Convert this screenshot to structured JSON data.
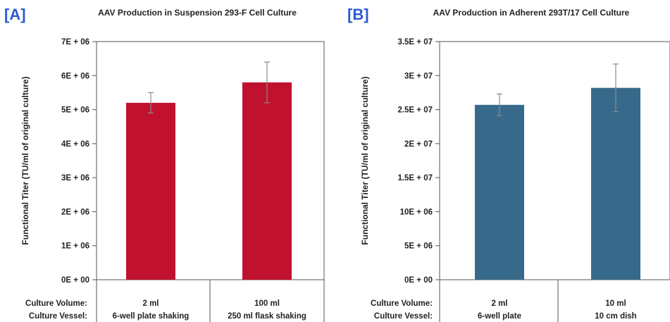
{
  "chart_data": [
    {
      "type": "bar",
      "panel_label": "[A]",
      "title": "AAV Production in Suspension 293-F Cell Culture",
      "ylabel": "Functional Titer (TU/ml of original culture)",
      "ylim": [
        0,
        7000000
      ],
      "yticks": [
        "0E + 00",
        "1E + 06",
        "2E + 06",
        "3E + 06",
        "4E + 06",
        "5E + 06",
        "6E + 06",
        "7E + 06"
      ],
      "row_labels": [
        "Culture Volume:",
        "Culture Vessel:"
      ],
      "categories": [
        {
          "volume": "2 ml",
          "vessel": "6-well plate shaking"
        },
        {
          "volume": "100 ml",
          "vessel": "250 ml flask shaking"
        }
      ],
      "values": [
        5200000,
        5800000
      ],
      "errors": [
        300000,
        600000
      ],
      "bar_color": "#c0122f",
      "grid": false
    },
    {
      "type": "bar",
      "panel_label": "[B]",
      "title": "AAV Production in Adherent 293T/17 Cell Culture",
      "ylabel": "Functional Titer (TU/ml of original culture)",
      "ylim": [
        0,
        35000000
      ],
      "yticks": [
        "0E + 00",
        "5E + 06",
        "10E + 06",
        "1.5E + 07",
        "2E + 07",
        "2.5E + 07",
        "3E + 07",
        "3.5E + 07"
      ],
      "row_labels": [
        "Culture Volume:",
        "Culture Vessel:"
      ],
      "categories": [
        {
          "volume": "2 ml",
          "vessel": "6-well plate"
        },
        {
          "volume": "10 ml",
          "vessel": "10 cm  dish"
        }
      ],
      "values": [
        25700000,
        28200000
      ],
      "errors": [
        1600000,
        3500000
      ],
      "bar_color": "#376a8a",
      "grid": false
    }
  ]
}
